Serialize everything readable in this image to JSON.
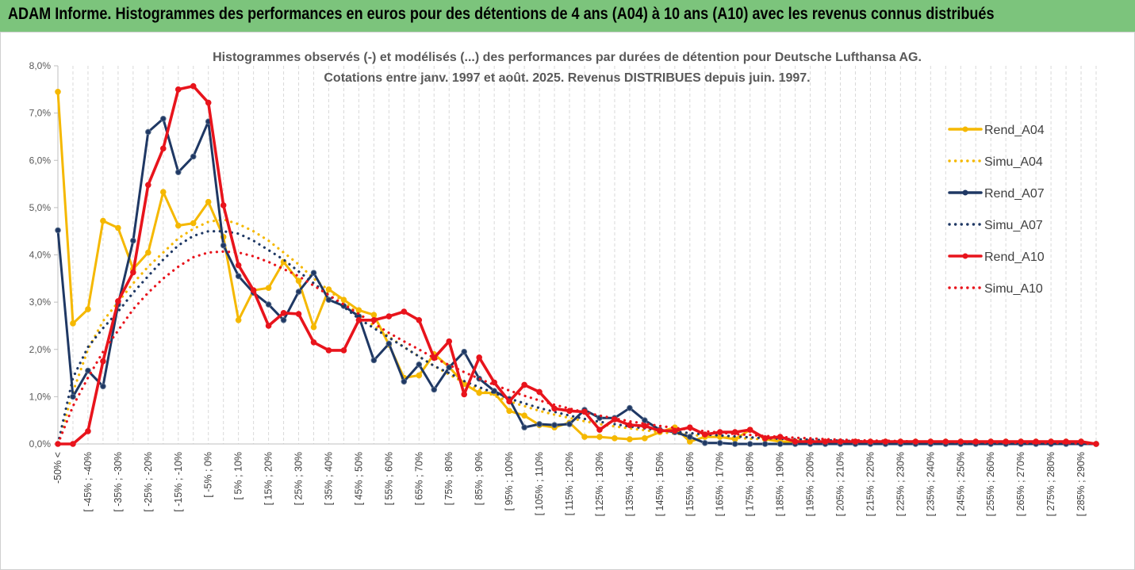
{
  "banner": {
    "title": "ADAM Informe. Histogrammes des performances en euros pour des détentions de 4 ans (A04) à 10 ans (A10) avec les revenus connus distribués",
    "color": "#7cc47c"
  },
  "chart_data": {
    "type": "line",
    "title_lines": [
      "Histogrammes observés (-) et modélisés (...) des performances par durées de détention pour Deutsche Lufthansa AG.",
      "Cotations entre janv. 1997 et août. 2025. Revenus DISTRIBUES depuis juin. 1997."
    ],
    "ylim": [
      0,
      8
    ],
    "y_ticks": [
      "0,0%",
      "1,0%",
      "2,0%",
      "3,0%",
      "4,0%",
      "5,0%",
      "6,0%",
      "7,0%",
      "8,0%"
    ],
    "grid": "vertical dashed",
    "legend_position": "right",
    "x_labels": [
      "-50% <",
      "[ -45% ; -40%",
      "[ -35% ; -30%",
      "[ -25% ; -20%",
      "[ -15% ; -10%",
      "[ -5% ; 0%",
      "[ 5% ; 10%",
      "[ 15% ; 20%",
      "[ 25% ; 30%",
      "[ 35% ; 40%",
      "[ 45% ; 50%",
      "[ 55% ; 60%",
      "[ 65% ; 70%",
      "[ 75% ; 80%",
      "[ 85% ; 90%",
      "[ 95% ; 100%",
      "[ 105% ; 110%",
      "[ 115% ; 120%",
      "[ 125% ; 130%",
      "[ 135% ; 140%",
      "[ 145% ; 150%",
      "[ 155% ; 160%",
      "[ 165% ; 170%",
      "[ 175% ; 180%",
      "[ 185% ; 190%",
      "[ 195% ; 200%",
      "[ 205% ; 210%",
      "[ 215% ; 220%",
      "[ 225% ; 230%",
      "[ 235% ; 240%",
      "[ 245% ; 250%",
      "[ 255% ; 260%",
      "[ 265% ; 270%",
      "[ 275% ; 280%",
      "[ 285% ; 290%"
    ],
    "series": [
      {
        "name": "Rend_A04",
        "style": "solid",
        "marker": true,
        "color": "#f5b800",
        "values": [
          7.45,
          2.55,
          2.85,
          4.72,
          4.57,
          3.7,
          4.05,
          5.33,
          4.62,
          4.67,
          5.12,
          4.38,
          2.62,
          3.25,
          3.3,
          3.85,
          3.45,
          2.47,
          3.27,
          3.05,
          2.83,
          2.73,
          2.1,
          1.4,
          1.45,
          1.9,
          1.63,
          1.27,
          1.08,
          1.08,
          0.7,
          0.6,
          0.4,
          0.35,
          0.45,
          0.15,
          0.15,
          0.12,
          0.1,
          0.12,
          0.25,
          0.35,
          0.05,
          0.15,
          0.15,
          0.1,
          0.3,
          0.1,
          0.05,
          0.05,
          0.05,
          0.05,
          0.05,
          0.05,
          0.05,
          0.05,
          0.05,
          0.05,
          0.05,
          0.05,
          0.05,
          0.05,
          0.05,
          0.05,
          0.05,
          0.05,
          0.05,
          0.05,
          0.05,
          0.0
        ]
      },
      {
        "name": "Simu_A04",
        "style": "dotted",
        "marker": false,
        "color": "#f5b800",
        "values": [
          0.0,
          1.1,
          2.0,
          2.6,
          3.0,
          3.4,
          3.75,
          4.05,
          4.35,
          4.55,
          4.7,
          4.75,
          4.65,
          4.5,
          4.3,
          4.05,
          3.8,
          3.5,
          3.25,
          3.0,
          2.75,
          2.5,
          2.27,
          2.05,
          1.85,
          1.65,
          1.47,
          1.3,
          1.15,
          1.02,
          0.9,
          0.8,
          0.7,
          0.62,
          0.55,
          0.48,
          0.42,
          0.37,
          0.33,
          0.29,
          0.25,
          0.22,
          0.19,
          0.17,
          0.15,
          0.13,
          0.11,
          0.1,
          0.09,
          0.08,
          0.07,
          0.06,
          0.05,
          0.05,
          0.04,
          0.04,
          0.03,
          0.03,
          0.03,
          0.02,
          0.02,
          0.02,
          0.02,
          0.01,
          0.01,
          0.01,
          0.01,
          0.01,
          0.01,
          0.0
        ]
      },
      {
        "name": "Rend_A07",
        "style": "solid",
        "marker": true,
        "color": "#1f3864",
        "values": [
          4.52,
          1.0,
          1.55,
          1.22,
          2.95,
          4.3,
          6.6,
          6.88,
          5.75,
          6.08,
          6.82,
          4.2,
          3.55,
          3.2,
          2.95,
          2.62,
          3.22,
          3.62,
          3.05,
          2.92,
          2.7,
          1.77,
          2.12,
          1.32,
          1.68,
          1.15,
          1.62,
          1.95,
          1.38,
          1.12,
          0.95,
          0.35,
          0.42,
          0.4,
          0.42,
          0.72,
          0.55,
          0.55,
          0.76,
          0.5,
          0.3,
          0.25,
          0.15,
          0.02,
          0.02,
          0.0,
          0.0,
          0.0,
          0.0,
          0.0,
          0.0,
          0.0,
          0.0,
          0.0,
          0.0,
          0.0,
          0.0,
          0.0,
          0.0,
          0.0,
          0.0,
          0.0,
          0.0,
          0.0,
          0.0,
          0.0,
          0.0,
          0.0,
          0.0,
          0.0
        ]
      },
      {
        "name": "Simu_A07",
        "style": "dotted",
        "marker": false,
        "color": "#1f3864",
        "values": [
          0.0,
          1.4,
          2.05,
          2.45,
          2.8,
          3.2,
          3.55,
          3.9,
          4.2,
          4.4,
          4.5,
          4.5,
          4.45,
          4.3,
          4.1,
          3.9,
          3.65,
          3.4,
          3.15,
          2.9,
          2.65,
          2.45,
          2.25,
          2.05,
          1.85,
          1.65,
          1.5,
          1.33,
          1.2,
          1.08,
          0.96,
          0.86,
          0.76,
          0.68,
          0.6,
          0.53,
          0.47,
          0.42,
          0.37,
          0.33,
          0.29,
          0.26,
          0.23,
          0.2,
          0.18,
          0.16,
          0.14,
          0.12,
          0.11,
          0.1,
          0.09,
          0.08,
          0.07,
          0.06,
          0.05,
          0.05,
          0.04,
          0.04,
          0.03,
          0.03,
          0.03,
          0.02,
          0.02,
          0.02,
          0.02,
          0.01,
          0.01,
          0.01,
          0.01,
          0.0
        ]
      },
      {
        "name": "Rend_A10",
        "style": "solid",
        "marker": true,
        "color": "#e8141c",
        "values": [
          0.0,
          0.0,
          0.27,
          1.75,
          3.02,
          3.63,
          5.48,
          6.25,
          7.5,
          7.57,
          7.22,
          5.05,
          3.78,
          3.25,
          2.5,
          2.77,
          2.75,
          2.15,
          1.98,
          1.98,
          2.62,
          2.62,
          2.7,
          2.8,
          2.62,
          1.82,
          2.17,
          1.05,
          1.83,
          1.3,
          0.9,
          1.25,
          1.1,
          0.75,
          0.7,
          0.68,
          0.3,
          0.52,
          0.4,
          0.38,
          0.28,
          0.28,
          0.35,
          0.2,
          0.25,
          0.25,
          0.3,
          0.12,
          0.15,
          0.05,
          0.05,
          0.05,
          0.05,
          0.05,
          0.05,
          0.05,
          0.05,
          0.05,
          0.05,
          0.05,
          0.05,
          0.05,
          0.05,
          0.05,
          0.05,
          0.05,
          0.05,
          0.05,
          0.05,
          0.0
        ]
      },
      {
        "name": "Simu_A10",
        "style": "dotted",
        "marker": false,
        "color": "#e8141c",
        "values": [
          0.0,
          0.8,
          1.4,
          1.95,
          2.4,
          2.85,
          3.2,
          3.5,
          3.75,
          3.95,
          4.05,
          4.07,
          4.05,
          3.97,
          3.85,
          3.7,
          3.55,
          3.35,
          3.15,
          2.95,
          2.75,
          2.55,
          2.35,
          2.17,
          2.0,
          1.82,
          1.67,
          1.52,
          1.38,
          1.25,
          1.13,
          1.02,
          0.92,
          0.83,
          0.75,
          0.67,
          0.6,
          0.54,
          0.48,
          0.43,
          0.38,
          0.34,
          0.3,
          0.27,
          0.24,
          0.21,
          0.19,
          0.17,
          0.15,
          0.13,
          0.12,
          0.1,
          0.09,
          0.08,
          0.07,
          0.07,
          0.06,
          0.05,
          0.05,
          0.04,
          0.04,
          0.03,
          0.03,
          0.03,
          0.02,
          0.02,
          0.02,
          0.02,
          0.01,
          0.0
        ]
      }
    ]
  }
}
